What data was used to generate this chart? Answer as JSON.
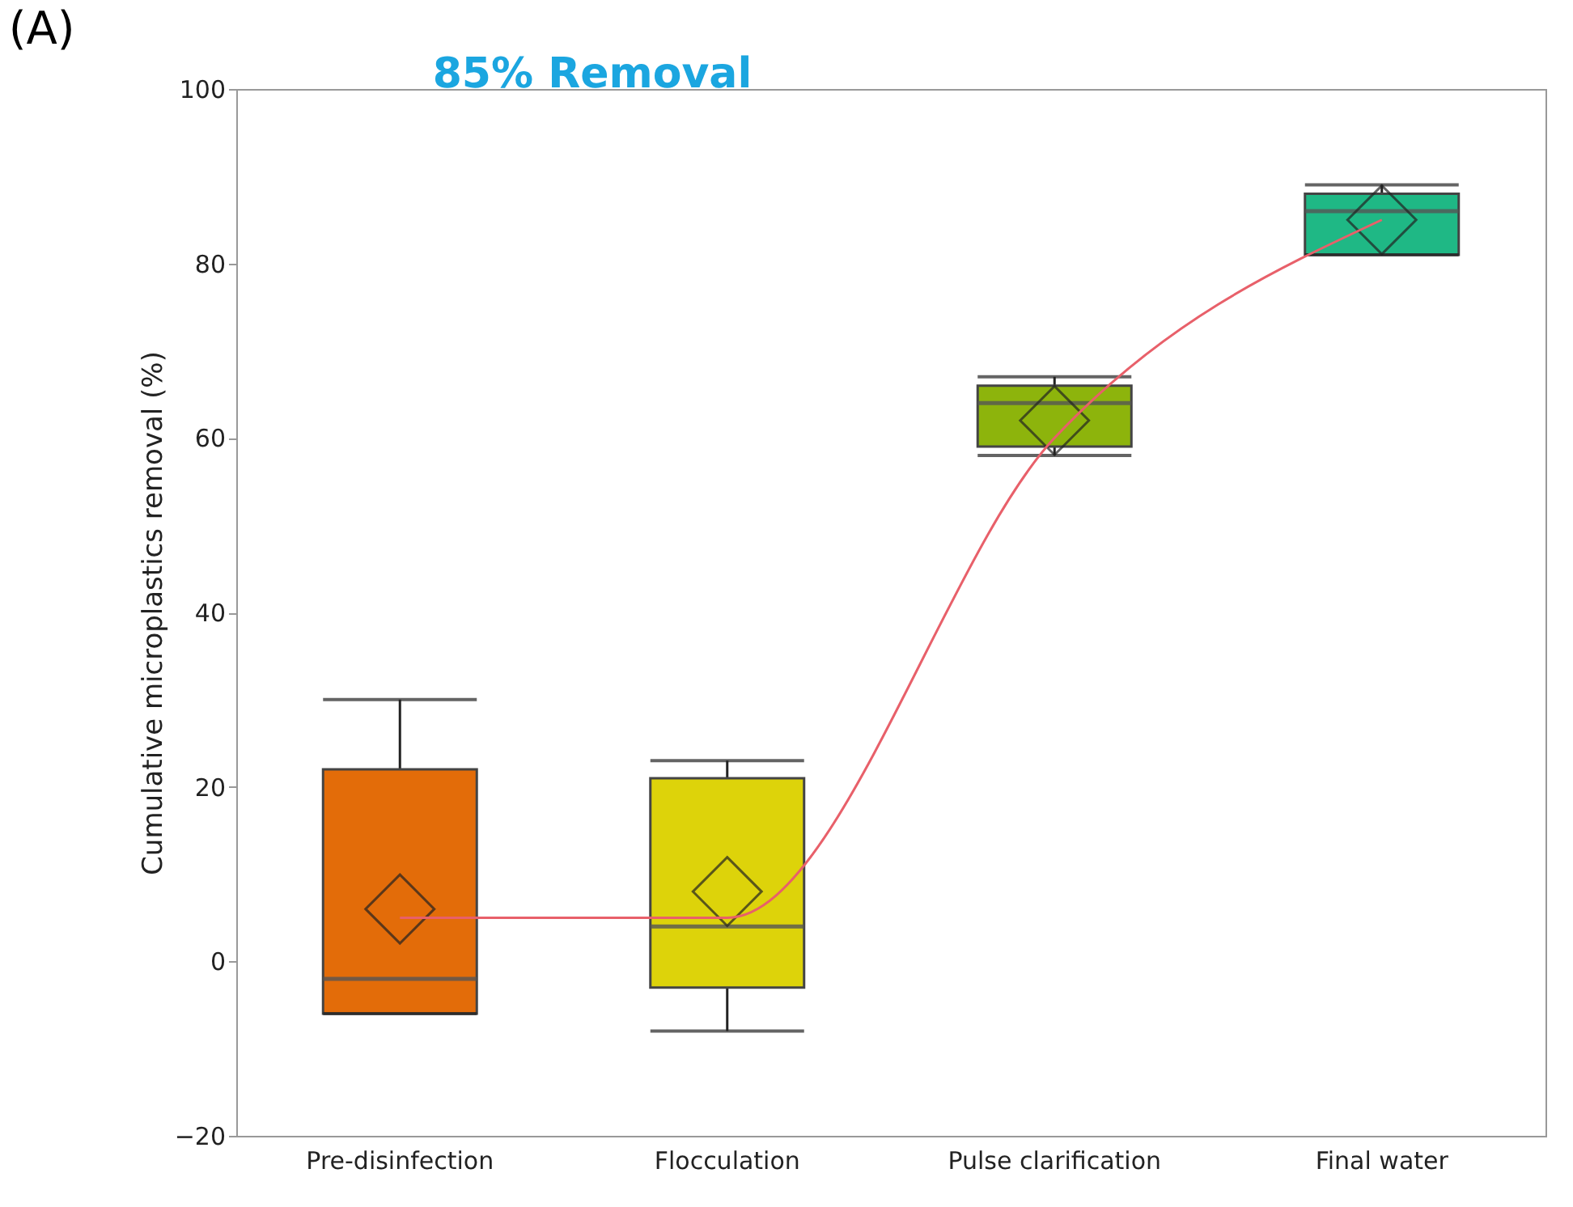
{
  "chart_data": {
    "type": "box",
    "title": "(A)",
    "ylabel": "Cumulative microplastics removal (%)",
    "categories": [
      "Pre-disinfection",
      "Flocculation",
      "Pulse clarification",
      "Final water"
    ],
    "colors": [
      "#e36c09",
      "#ddd30a",
      "#8db40c",
      "#1fb885"
    ],
    "boxes": [
      {
        "low": -6,
        "q1": -6,
        "median": -2,
        "q3": 22,
        "high": 30,
        "mean": 6
      },
      {
        "low": -8,
        "q1": -3,
        "median": 4,
        "q3": 21,
        "high": 23,
        "mean": 8
      },
      {
        "low": 58,
        "q1": 59,
        "median": 64,
        "q3": 66,
        "high": 67,
        "mean": 62
      },
      {
        "low": 81,
        "q1": 81,
        "median": 86,
        "q3": 88,
        "high": 89,
        "mean": 85
      }
    ],
    "series": [
      {
        "type": "line",
        "color": "#e8606a",
        "x": [
          "Pre-disinfection",
          "Flocculation",
          "Pulse clarification",
          "Final water"
        ],
        "values": [
          5,
          5,
          60,
          85
        ]
      }
    ],
    "annotations": [
      "85% Removal"
    ],
    "ylim": [
      -20,
      100
    ],
    "yticks": [
      -20,
      0,
      20,
      40,
      60,
      80,
      100
    ],
    "grid": false,
    "legend": false
  }
}
